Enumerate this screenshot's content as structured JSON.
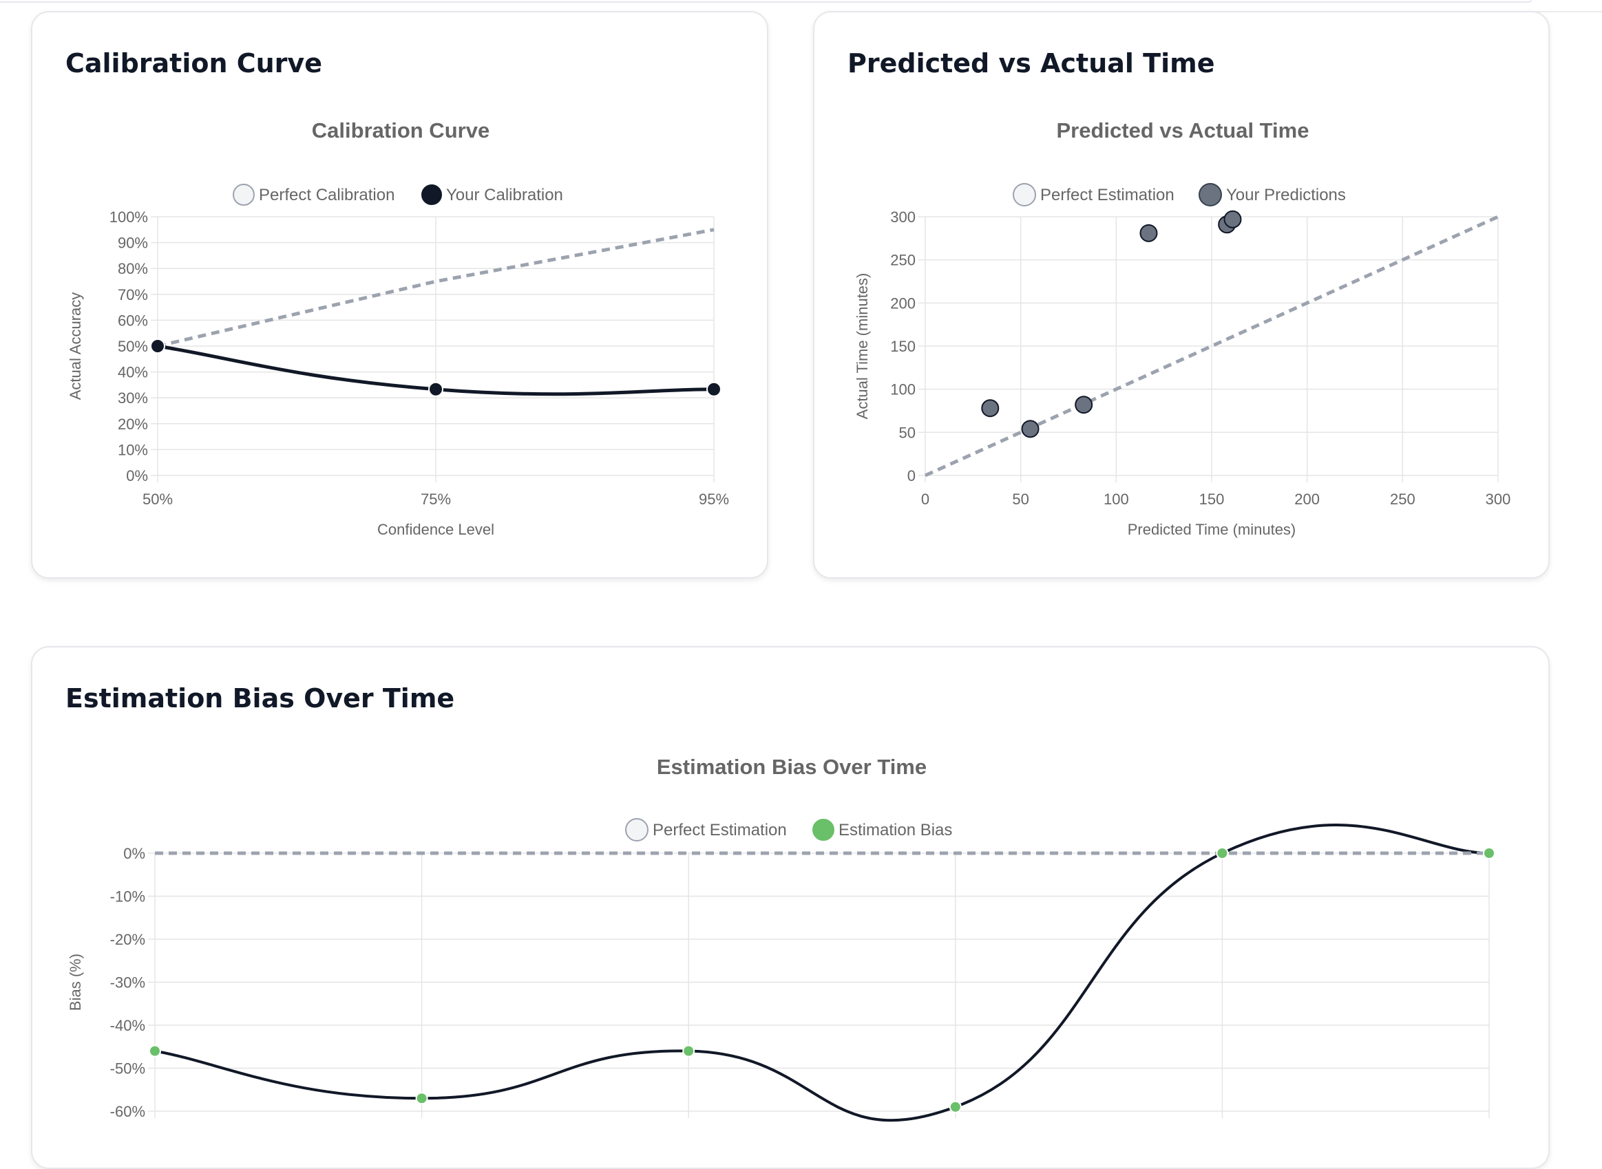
{
  "cards": {
    "calibration": {
      "heading": "Calibration Curve"
    },
    "predicted": {
      "heading": "Predicted vs Actual Time"
    },
    "bias": {
      "heading": "Estimation Bias Over Time"
    }
  },
  "chart_data": [
    {
      "id": "calibration",
      "type": "line",
      "title": "Calibration Curve",
      "xlabel": "Confidence Level",
      "ylabel": "Actual Accuracy",
      "categories": [
        "50%",
        "75%",
        "95%"
      ],
      "ylim": [
        0,
        100
      ],
      "yticks": [
        "0%",
        "10%",
        "20%",
        "30%",
        "40%",
        "50%",
        "60%",
        "70%",
        "80%",
        "90%",
        "100%"
      ],
      "grid": true,
      "legend": "top-center",
      "series": [
        {
          "name": "Perfect Calibration",
          "values": [
            50,
            75,
            95
          ],
          "color": "#9ca3af",
          "style": "dashed"
        },
        {
          "name": "Your Calibration",
          "values": [
            50,
            33.3,
            33.3
          ],
          "color": "#111827",
          "style": "solid"
        }
      ]
    },
    {
      "id": "predicted",
      "type": "scatter",
      "title": "Predicted vs Actual Time",
      "xlabel": "Predicted Time (minutes)",
      "ylabel": "Actual Time (minutes)",
      "xlim": [
        0,
        300
      ],
      "ylim": [
        0,
        300
      ],
      "xticks": [
        "0",
        "50",
        "100",
        "150",
        "200",
        "250",
        "300"
      ],
      "yticks": [
        "0",
        "50",
        "100",
        "150",
        "200",
        "250",
        "300"
      ],
      "grid": true,
      "legend": "top-center",
      "series": [
        {
          "name": "Perfect Estimation",
          "points": [
            [
              0,
              0
            ],
            [
              300,
              300
            ]
          ],
          "color": "#9ca3af",
          "style": "dashed"
        },
        {
          "name": "Your Predictions",
          "color": "#6b7280",
          "points": [
            [
              34,
              78
            ],
            [
              55,
              54
            ],
            [
              83,
              82
            ],
            [
              117,
              281
            ],
            [
              158,
              291
            ],
            [
              161,
              297
            ]
          ]
        }
      ]
    },
    {
      "id": "bias",
      "type": "line",
      "title": "Estimation Bias Over Time",
      "ylabel": "Bias (%)",
      "categories": [
        "",
        "",
        "",
        "",
        "",
        ""
      ],
      "ylim": [
        -60,
        0
      ],
      "yticks": [
        "0%",
        "-10%",
        "-20%",
        "-30%",
        "-40%",
        "-50%",
        "-60%"
      ],
      "grid": true,
      "legend": "top-center",
      "series": [
        {
          "name": "Perfect Estimation",
          "values": [
            0,
            0,
            0,
            0,
            0,
            0
          ],
          "color": "#9ca3af",
          "style": "dashed"
        },
        {
          "name": "Estimation Bias",
          "values": [
            -46,
            -57,
            -46,
            -59,
            0,
            0
          ],
          "color": "#111827",
          "point_color": "#6abf69"
        }
      ]
    }
  ]
}
